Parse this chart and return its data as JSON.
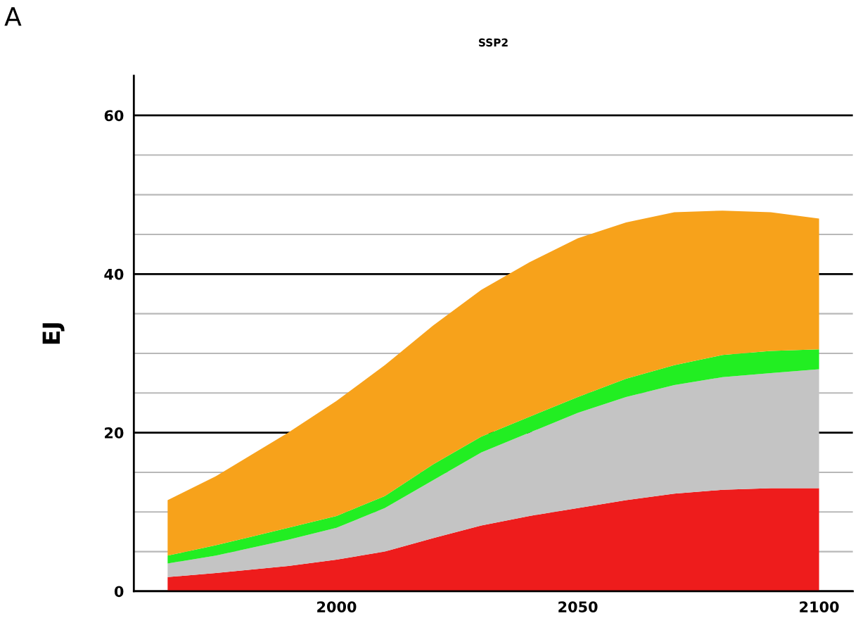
{
  "chart_data": {
    "type": "area",
    "stacked": true,
    "title": "SSP2",
    "ylabel": "EJ",
    "annotations": [
      "A"
    ],
    "x": [
      1965,
      1975,
      1990,
      2000,
      2010,
      2020,
      2030,
      2040,
      2050,
      2060,
      2070,
      2080,
      2090,
      2100
    ],
    "series": [
      {
        "color": "#ee1c1c",
        "values": [
          1.8,
          2.3,
          3.2,
          4,
          5,
          6.7,
          8.3,
          9.5,
          10.5,
          11.5,
          12.3,
          12.8,
          13,
          13
        ]
      },
      {
        "color": "#c4c4c4",
        "values": [
          1.7,
          2.2,
          3.3,
          4,
          5.5,
          7.3,
          9.2,
          10.5,
          12,
          13,
          13.7,
          14.2,
          14.5,
          15
        ]
      },
      {
        "color": "#22ee22",
        "values": [
          1,
          1.3,
          1.5,
          1.5,
          1.5,
          2,
          2,
          2,
          2,
          2.3,
          2.5,
          2.8,
          2.8,
          2.5
        ]
      },
      {
        "color": "#f7a21b",
        "values": [
          7,
          8.7,
          12,
          14.5,
          16.5,
          17.5,
          18.5,
          19.5,
          20,
          19.7,
          19.3,
          18.2,
          17.5,
          16.5
        ]
      }
    ],
    "xlim": [
      1958,
      2107
    ],
    "xticks": [
      2000,
      2050,
      2100
    ],
    "ylim": [
      0,
      65
    ],
    "yticks": [
      0,
      {
        "value": 5,
        "label": null
      },
      {
        "value": 10,
        "label": null
      },
      {
        "value": 15,
        "label": null
      },
      20,
      {
        "value": 25,
        "label": null
      },
      {
        "value": 30,
        "label": null
      },
      {
        "value": 35,
        "label": null
      },
      40,
      {
        "value": 45,
        "label": null
      },
      {
        "value": 50,
        "label": null
      },
      {
        "value": 55,
        "label": null
      },
      60
    ],
    "grid": "y",
    "legend": false
  }
}
